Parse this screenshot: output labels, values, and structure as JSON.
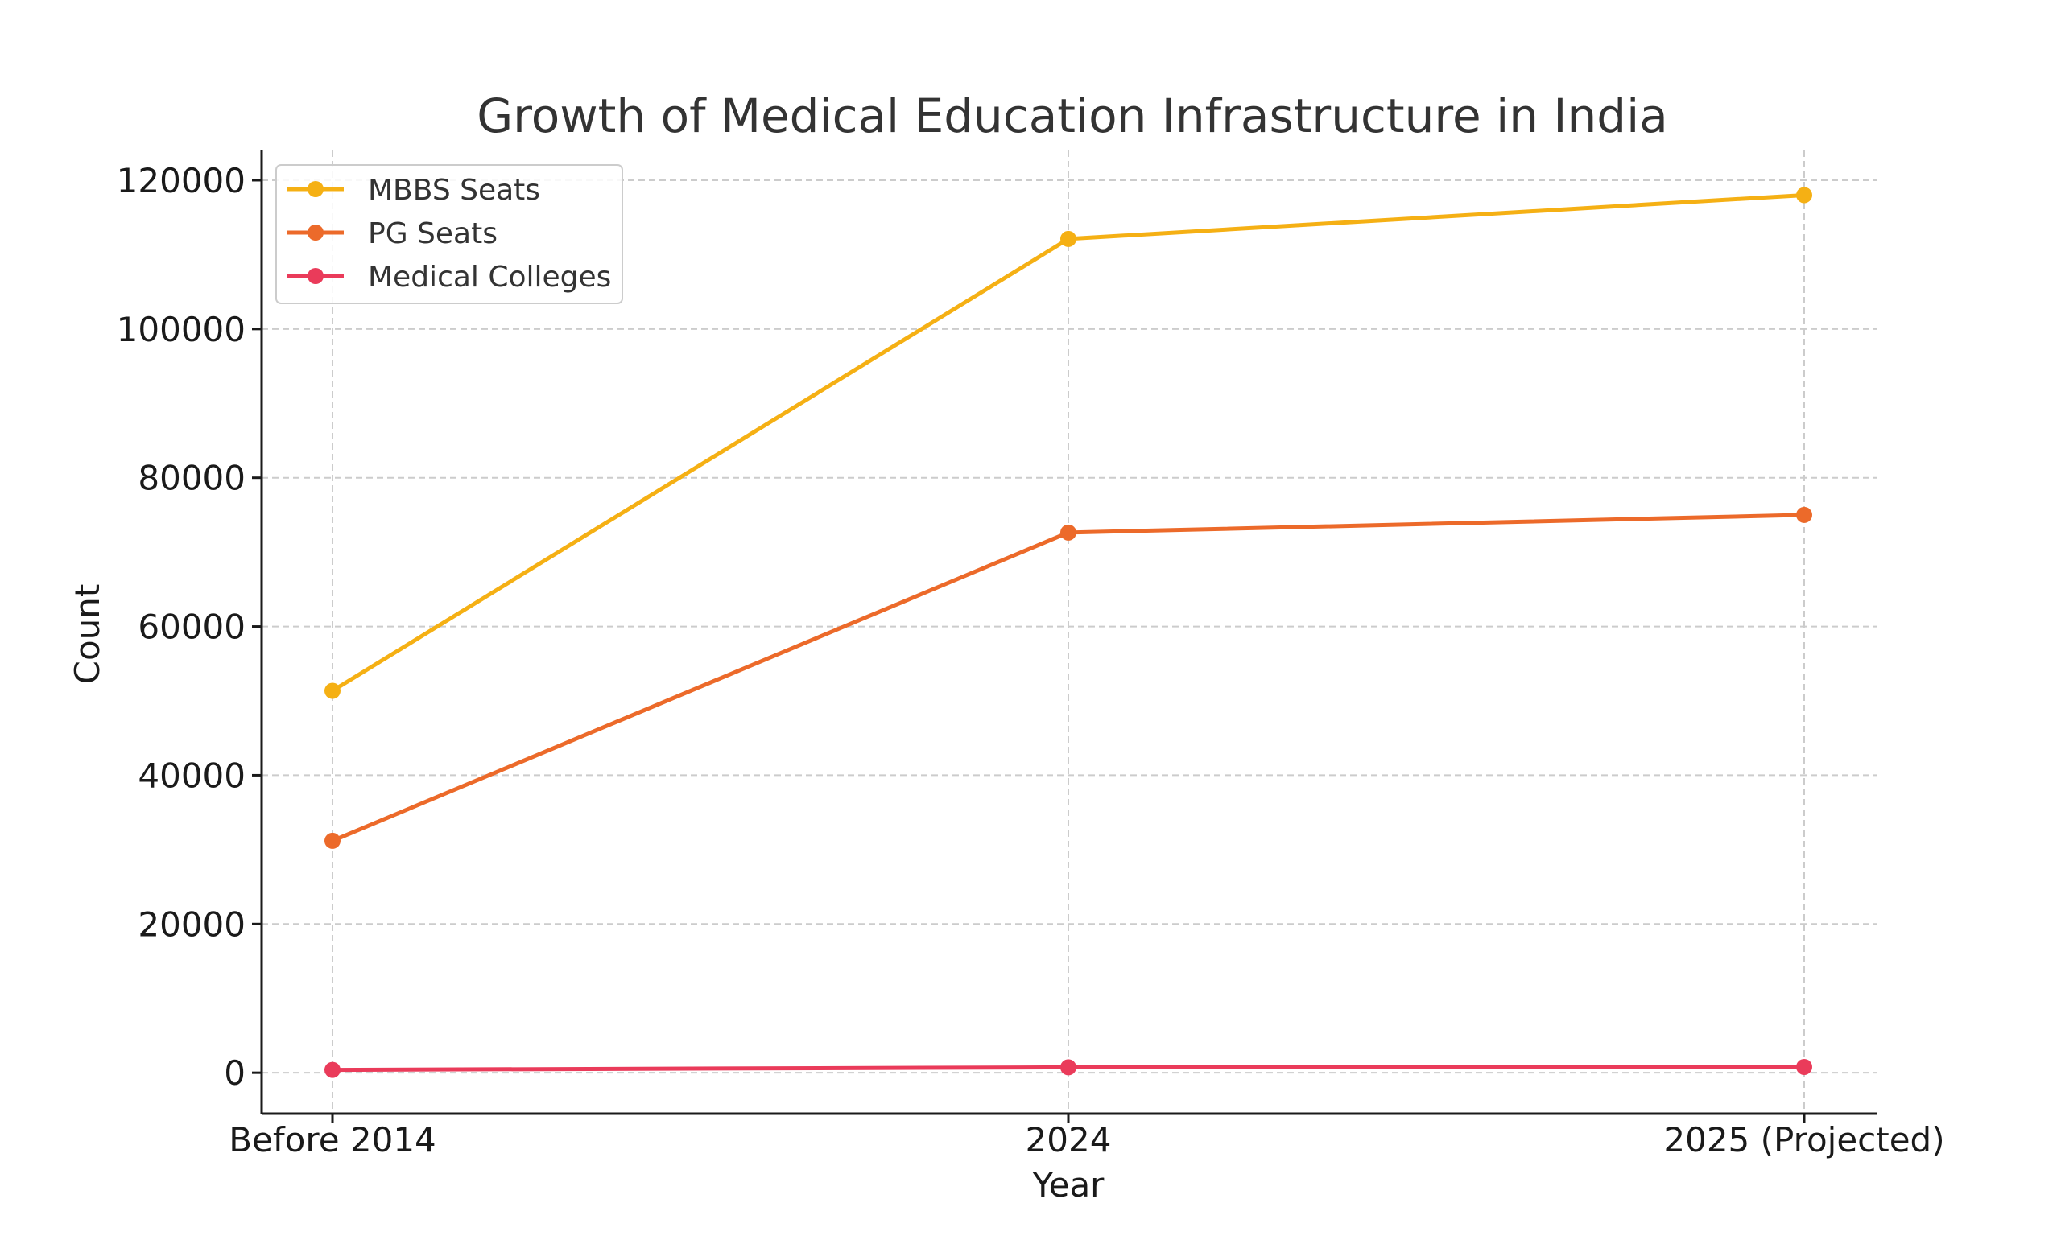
{
  "chart_data": {
    "type": "line",
    "title": "Growth of Medical Education Infrastructure in India",
    "xlabel": "Year",
    "ylabel": "Count",
    "categories": [
      "Before 2014",
      "2024",
      "2025 (Projected)"
    ],
    "ylim": [
      -5500,
      124000
    ],
    "yticks": [
      0,
      20000,
      40000,
      60000,
      80000,
      100000,
      120000
    ],
    "grid": true,
    "legend_position": "top-left",
    "series": [
      {
        "name": "MBBS Seats",
        "color": "#f5b014",
        "values": [
          51348,
          112112,
          118000
        ]
      },
      {
        "name": "PG Seats",
        "color": "#ec6a2a",
        "values": [
          31185,
          72627,
          75000
        ]
      },
      {
        "name": "Medical Colleges",
        "color": "#ea3b5a",
        "values": [
          387,
          731,
          780
        ]
      }
    ]
  }
}
